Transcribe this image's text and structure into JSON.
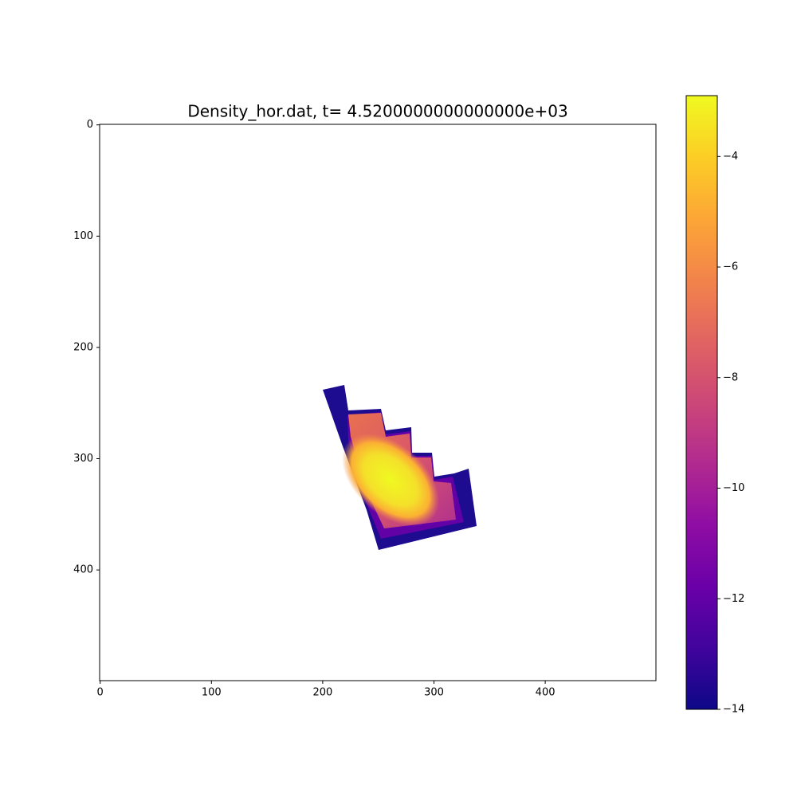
{
  "chart_data": {
    "type": "heatmap",
    "title": "Density_hor.dat, t= 4.5200000000000000e+03",
    "xlim": [
      -0.5,
      499.5
    ],
    "xticks": [
      0,
      100,
      200,
      300,
      400
    ],
    "ylim": [
      499.5,
      -0.5
    ],
    "yticks": [
      0,
      100,
      200,
      300,
      400
    ],
    "colormap": "plasma",
    "clim": [
      -14,
      -2.9
    ],
    "cticks": [
      {
        "value": -14,
        "label": "−14"
      },
      {
        "value": -12,
        "label": "−12"
      },
      {
        "value": -10,
        "label": "−10"
      },
      {
        "value": -8,
        "label": "−8"
      },
      {
        "value": -6,
        "label": "−6"
      },
      {
        "value": -4,
        "label": "−4"
      }
    ]
  }
}
